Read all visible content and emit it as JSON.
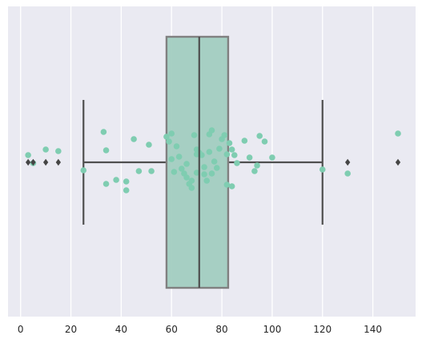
{
  "chart_data": {
    "type": "box",
    "orientation": "horizontal",
    "title": "",
    "xlabel": "",
    "ylabel": "",
    "xlim": [
      -5,
      157
    ],
    "x_ticks": [
      0,
      20,
      40,
      60,
      80,
      100,
      120,
      140
    ],
    "grid": true,
    "box": {
      "whisker_low": 25,
      "q1": 58,
      "median": 71,
      "q3": 82.5,
      "whisker_high": 120,
      "outliers": [
        3,
        5,
        10,
        15,
        130,
        150
      ]
    },
    "strip_points": {
      "description_free": true,
      "points": [
        {
          "x": 3,
          "dy": 0.09
        },
        {
          "x": 5,
          "dy": -0.01
        },
        {
          "x": 10,
          "dy": 0.16
        },
        {
          "x": 15,
          "dy": 0.14
        },
        {
          "x": 25,
          "dy": -0.1
        },
        {
          "x": 33,
          "dy": 0.38
        },
        {
          "x": 34,
          "dy": 0.15
        },
        {
          "x": 34,
          "dy": -0.27
        },
        {
          "x": 38,
          "dy": -0.22
        },
        {
          "x": 42,
          "dy": -0.24
        },
        {
          "x": 42,
          "dy": -0.35
        },
        {
          "x": 45,
          "dy": 0.29
        },
        {
          "x": 47,
          "dy": -0.11
        },
        {
          "x": 51,
          "dy": 0.22
        },
        {
          "x": 52,
          "dy": -0.11
        },
        {
          "x": 58,
          "dy": 0.32
        },
        {
          "x": 59,
          "dy": 0.26
        },
        {
          "x": 60,
          "dy": 0.36
        },
        {
          "x": 60,
          "dy": 0.04
        },
        {
          "x": 61,
          "dy": -0.12
        },
        {
          "x": 62,
          "dy": 0.2
        },
        {
          "x": 63,
          "dy": 0.07
        },
        {
          "x": 64,
          "dy": -0.08
        },
        {
          "x": 65,
          "dy": -0.14
        },
        {
          "x": 66,
          "dy": -0.02
        },
        {
          "x": 66,
          "dy": -0.19
        },
        {
          "x": 67,
          "dy": -0.27
        },
        {
          "x": 68,
          "dy": -0.23
        },
        {
          "x": 68,
          "dy": -0.32
        },
        {
          "x": 69,
          "dy": 0.34
        },
        {
          "x": 70,
          "dy": 0.16
        },
        {
          "x": 70,
          "dy": 0.1
        },
        {
          "x": 70,
          "dy": -0.13
        },
        {
          "x": 71,
          "dy": 0.12
        },
        {
          "x": 72,
          "dy": 0.09
        },
        {
          "x": 73,
          "dy": -0.15
        },
        {
          "x": 73,
          "dy": -0.06
        },
        {
          "x": 74,
          "dy": -0.23
        },
        {
          "x": 75,
          "dy": 0.35
        },
        {
          "x": 75,
          "dy": 0.13
        },
        {
          "x": 76,
          "dy": 0.4
        },
        {
          "x": 76,
          "dy": -0.14
        },
        {
          "x": 77,
          "dy": 0.01
        },
        {
          "x": 78,
          "dy": -0.07
        },
        {
          "x": 79,
          "dy": 0.17
        },
        {
          "x": 80,
          "dy": 0.29
        },
        {
          "x": 81,
          "dy": 0.34
        },
        {
          "x": 82,
          "dy": 0.1
        },
        {
          "x": 82,
          "dy": -0.28
        },
        {
          "x": 83,
          "dy": 0.24
        },
        {
          "x": 84,
          "dy": 0.16
        },
        {
          "x": 84,
          "dy": -0.3
        },
        {
          "x": 85,
          "dy": 0.09
        },
        {
          "x": 86,
          "dy": -0.01
        },
        {
          "x": 89,
          "dy": 0.27
        },
        {
          "x": 91,
          "dy": 0.06
        },
        {
          "x": 93,
          "dy": -0.11
        },
        {
          "x": 94,
          "dy": -0.04
        },
        {
          "x": 95,
          "dy": 0.33
        },
        {
          "x": 97,
          "dy": 0.26
        },
        {
          "x": 100,
          "dy": 0.06
        },
        {
          "x": 120,
          "dy": -0.09
        },
        {
          "x": 130,
          "dy": -0.14
        },
        {
          "x": 150,
          "dy": 0.36
        }
      ]
    },
    "colors": {
      "background": "#eaeaf2",
      "grid": "#ffffff",
      "box_fill": "#a2cdc0",
      "box_edge": "#808080",
      "whisker": "#4f4f4f",
      "strip_point": "#7fcdb1",
      "outlier": "#454545"
    }
  }
}
